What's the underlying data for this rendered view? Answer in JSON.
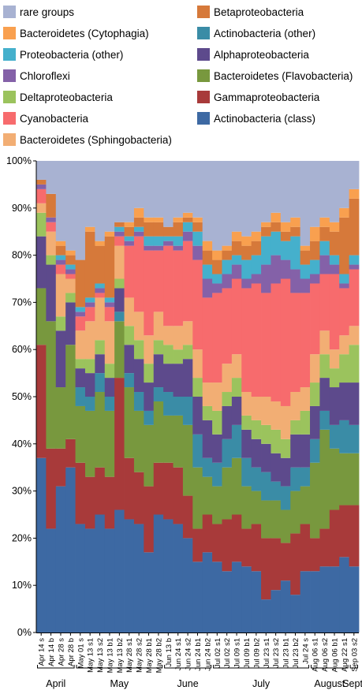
{
  "chart_data": {
    "type": "stacked-bar",
    "title": "",
    "xlabel": "",
    "ylabel": "",
    "ylim": [
      0,
      100
    ],
    "yticks": [
      0,
      10,
      20,
      30,
      40,
      50,
      60,
      70,
      80,
      90,
      100
    ],
    "ytick_suffix": "%",
    "categories": [
      "Apr 14 s",
      "Apr 14 b",
      "Apr 28 s",
      "Apr 28 b",
      "May 01 s",
      "May 13 s1",
      "May 13 s2",
      "May 13 b1",
      "May 13 b2",
      "May 28 s1",
      "May 28 s2",
      "May 28 b1",
      "May 28 b2",
      "Jun 13 b",
      "Jun 24 s1",
      "Jun 24 s2",
      "Jun 24 b1",
      "Jun 24 b2",
      "Jul 02 s1",
      "Jul 02 s2",
      "Jul 09 s1",
      "Jul 09 b1",
      "Jul 09 b2",
      "Jul 23 s1",
      "Jul 23 s2",
      "Jul 23 b1",
      "Jul 23 b2",
      "Jul 24 s",
      "Aug 06 s1",
      "Aug 06 s2",
      "Aug 06 b1",
      "Aug 22 s1",
      "Sep 03 s2"
    ],
    "months": [
      {
        "name": "April",
        "start": 0,
        "end": 3
      },
      {
        "name": "May",
        "start": 4,
        "end": 12
      },
      {
        "name": "June",
        "start": 13,
        "end": 17
      },
      {
        "name": "July",
        "start": 18,
        "end": 27
      },
      {
        "name": "August",
        "start": 28,
        "end": 31
      },
      {
        "name": "Sept.",
        "start": 32,
        "end": 32
      }
    ],
    "legend_position": "top",
    "series": [
      {
        "name": "Actinobacteria (class)",
        "color": "#3d69a3",
        "values": [
          37,
          22,
          31,
          35,
          23,
          22,
          25,
          22,
          26,
          24,
          23,
          17,
          25,
          24,
          23,
          20,
          15,
          17,
          15,
          13,
          15,
          14,
          13,
          7,
          9,
          11,
          8,
          13,
          13,
          14,
          14,
          16,
          14
        ]
      },
      {
        "name": "Gammaproteobacteria",
        "color": "#a83a3a",
        "values": [
          24,
          17,
          8,
          6,
          13,
          11,
          10,
          11,
          28,
          13,
          11,
          14,
          11,
          12,
          12,
          9,
          7,
          8,
          8,
          11,
          10,
          8,
          10,
          13,
          11,
          8,
          13,
          10,
          7,
          8,
          12,
          11,
          13
        ]
      },
      {
        "name": "Bacteroidetes (Flavobacteria)",
        "color": "#78983e",
        "values": [
          12,
          27,
          13,
          20,
          12,
          14,
          16,
          14,
          12,
          15,
          13,
          13,
          13,
          10,
          11,
          15,
          13,
          8,
          8,
          11,
          12,
          9,
          7,
          8,
          8,
          7,
          9,
          8,
          16,
          21,
          13,
          11,
          11
        ]
      },
      {
        "name": "Actinobacteria (other)",
        "color": "#3a8ca6",
        "values": [
          0,
          0,
          0,
          0,
          4,
          3,
          4,
          3,
          2,
          3,
          4,
          3,
          3,
          5,
          4,
          6,
          7,
          4,
          5,
          6,
          7,
          6,
          5,
          6,
          4,
          5,
          5,
          4,
          5,
          4,
          5,
          7,
          6
        ]
      },
      {
        "name": "Alphaproteobacteria",
        "color": "#5d4a8c",
        "values": [
          11,
          12,
          12,
          9,
          4,
          5,
          4,
          4,
          5,
          6,
          7,
          6,
          7,
          6,
          7,
          8,
          8,
          8,
          6,
          7,
          6,
          6,
          6,
          6,
          6,
          6,
          7,
          7,
          7,
          7,
          8,
          8,
          9
        ]
      },
      {
        "name": "Deltaproteobacteria",
        "color": "#9bc35d",
        "values": [
          5,
          2,
          3,
          2,
          2,
          3,
          3,
          3,
          2,
          4,
          4,
          4,
          3,
          4,
          3,
          3,
          4,
          3,
          5,
          3,
          4,
          3,
          4,
          4,
          5,
          4,
          3,
          5,
          5,
          5,
          4,
          6,
          8
        ]
      },
      {
        "name": "Bacteroidetes (Sphingobacteria)",
        "color": "#f2ae74",
        "values": [
          2,
          5,
          9,
          3,
          6,
          8,
          9,
          9,
          7,
          6,
          6,
          6,
          6,
          4,
          5,
          5,
          6,
          5,
          6,
          6,
          5,
          5,
          5,
          6,
          6,
          7,
          6,
          5,
          6,
          5,
          4,
          4,
          4
        ]
      },
      {
        "name": "Cyanobacteria",
        "color": "#f76b6d",
        "values": [
          3,
          2,
          2,
          1,
          3,
          3,
          1,
          3,
          2,
          11,
          16,
          18,
          13,
          17,
          16,
          17,
          19,
          18,
          19,
          16,
          16,
          22,
          24,
          22,
          25,
          27,
          21,
          20,
          15,
          12,
          16,
          10,
          12
        ]
      },
      {
        "name": "Chloroflexi",
        "color": "#8461a8",
        "values": [
          1,
          1,
          1,
          1,
          1,
          1,
          1,
          1,
          1,
          1,
          1,
          1,
          1,
          1,
          1,
          2,
          3,
          4,
          2,
          3,
          3,
          2,
          2,
          6,
          6,
          4,
          5,
          3,
          2,
          4,
          2,
          1,
          1
        ]
      },
      {
        "name": "Proteobacteria (other)",
        "color": "#45b0cc",
        "values": [
          0,
          0,
          1,
          1,
          1,
          1,
          1,
          1,
          1,
          1,
          1,
          2,
          2,
          1,
          2,
          2,
          3,
          3,
          2,
          3,
          2,
          4,
          4,
          6,
          5,
          4,
          7,
          3,
          3,
          3,
          2,
          2,
          2
        ]
      },
      {
        "name": "Betaproteobacteria",
        "color": "#d6793a",
        "values": [
          1,
          5,
          2,
          2,
          10,
          14,
          8,
          13,
          1,
          2,
          2,
          3,
          3,
          2,
          3,
          1,
          2,
          3,
          3,
          2,
          3,
          3,
          3,
          2,
          2,
          2,
          2,
          3,
          4,
          3,
          5,
          12,
          12
        ]
      },
      {
        "name": "Bacteroidetes (Cytophagia)",
        "color": "#f9a04f",
        "values": [
          0,
          0,
          1,
          1,
          0,
          1,
          1,
          1,
          0,
          1,
          2,
          1,
          1,
          0,
          1,
          1,
          1,
          2,
          2,
          1,
          2,
          2,
          2,
          1,
          2,
          2,
          2,
          1,
          3,
          2,
          2,
          2,
          2
        ]
      },
      {
        "name": "rare groups",
        "color": "#a8b2d2",
        "values": [
          4,
          7,
          17,
          19,
          21,
          14,
          17,
          15,
          13,
          13,
          10,
          12,
          12,
          14,
          12,
          11,
          12,
          17,
          19,
          18,
          15,
          16,
          15,
          13,
          11,
          13,
          12,
          18,
          14,
          12,
          13,
          10,
          6
        ]
      }
    ]
  }
}
